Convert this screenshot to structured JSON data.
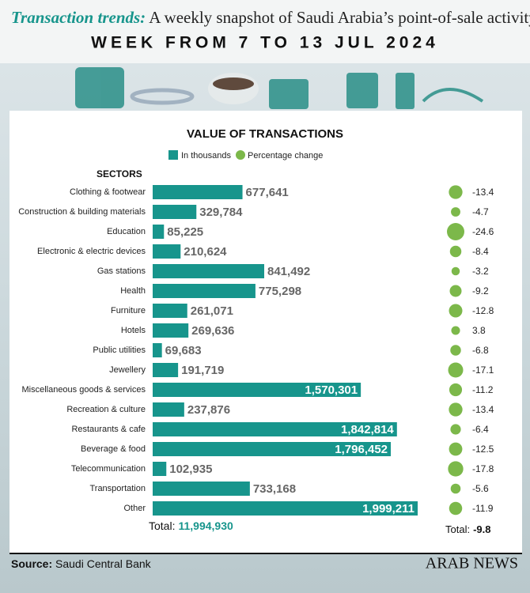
{
  "header": {
    "title_lead": "Transaction trends:",
    "title_rest": "A weekly snapshot of Saudi Arabia’s point-of-sale activity",
    "subtitle": "WEEK FROM 7 TO 13 JUL 2024"
  },
  "chart_data": {
    "type": "bar",
    "title": "VALUE OF TRANSACTIONS",
    "category_label": "SECTORS",
    "categories": [
      "Clothing & footwear",
      "Construction & building materials",
      "Education",
      "Electronic & electric devices",
      "Gas stations",
      "Health",
      "Furniture",
      "Hotels",
      "Public utilities",
      "Jewellery",
      "Miscellaneous goods & services",
      "Recreation & culture",
      "Restaurants & cafe",
      "Beverage & food",
      "Telecommunication",
      "Transportation",
      "Other"
    ],
    "series": [
      {
        "name": "In thousands",
        "color": "#17958c",
        "values": [
          677641,
          329784,
          85225,
          210624,
          841492,
          775298,
          261071,
          269636,
          69683,
          191719,
          1570301,
          237876,
          1842814,
          1796452,
          102935,
          733168,
          1999211
        ],
        "value_labels": [
          "677,641",
          "329,784",
          "85,225",
          "210,624",
          "841,492",
          "775,298",
          "261,071",
          "269,636",
          "69,683",
          "191,719",
          "1,570,301",
          "237,876",
          "1,842,814",
          "1,796,452",
          "102,935",
          "733,168",
          "1,999,211"
        ]
      },
      {
        "name": "Percentage change",
        "color": "#7cb84a",
        "values": [
          -13.4,
          -4.7,
          -24.6,
          -8.4,
          -3.2,
          -9.2,
          -12.8,
          3.8,
          -6.8,
          -17.1,
          -11.2,
          -13.4,
          -6.4,
          -12.5,
          -17.8,
          -5.6,
          -11.9
        ]
      }
    ],
    "totals": [
      {
        "label": "Total:",
        "value": 11994930,
        "value_label": "11,994,930"
      },
      {
        "label": "Total:",
        "value": -9.8
      }
    ]
  },
  "source": {
    "label": "Source:",
    "text": "Saudi Central Bank"
  },
  "brand": "ARAB NEWS"
}
